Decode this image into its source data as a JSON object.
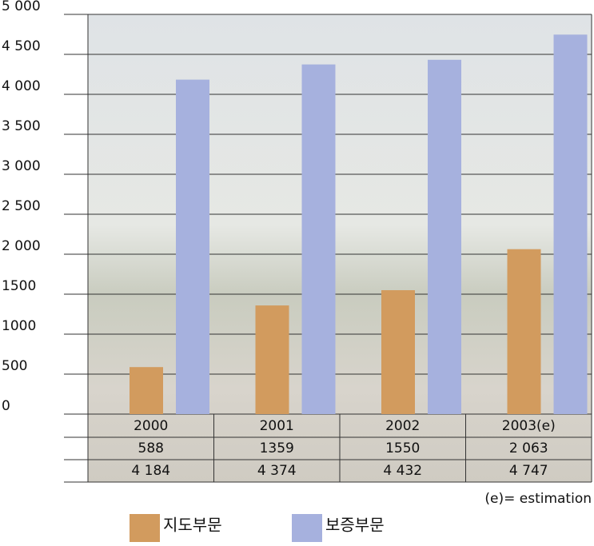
{
  "chart_data": {
    "type": "bar",
    "categories": [
      "2000",
      "2001",
      "2002",
      "2003(e)"
    ],
    "series": [
      {
        "name": "지도부문",
        "color": "#d29b5e",
        "values": [
          588,
          1359,
          1550,
          2063
        ],
        "value_labels": [
          "588",
          "1359",
          "1550",
          "2 063"
        ]
      },
      {
        "name": "보증부문",
        "color": "#a6b1de",
        "values": [
          4184,
          4374,
          4432,
          4747
        ],
        "value_labels": [
          "4 184",
          "4 374",
          "4 432",
          "4 747"
        ]
      }
    ],
    "ylim": [
      0,
      5000
    ],
    "yticks": [
      0,
      500,
      1000,
      1500,
      {
        "value": 2000,
        "label": "2 000"
      },
      {
        "value": 2500,
        "label": "2 500"
      },
      {
        "value": 3000,
        "label": "3 000"
      },
      {
        "value": 3500,
        "label": "3 500"
      },
      {
        "value": 4000,
        "label": "4 000"
      },
      {
        "value": 4500,
        "label": "4 500"
      },
      {
        "value": 5000,
        "label": "5 000"
      }
    ],
    "grid": true,
    "annotation": "(e)= estimation"
  }
}
